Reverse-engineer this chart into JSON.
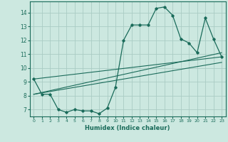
{
  "xlabel": "Humidex (Indice chaleur)",
  "bg_color": "#cce8e0",
  "grid_color": "#aaccc4",
  "line_color": "#1a6b5a",
  "xlim": [
    -0.5,
    23.5
  ],
  "ylim": [
    6.5,
    14.8
  ],
  "yticks": [
    7,
    8,
    9,
    10,
    11,
    12,
    13,
    14
  ],
  "xticks": [
    0,
    1,
    2,
    3,
    4,
    5,
    6,
    7,
    8,
    9,
    10,
    11,
    12,
    13,
    14,
    15,
    16,
    17,
    18,
    19,
    20,
    21,
    22,
    23
  ],
  "series1_x": [
    0,
    1,
    2,
    3,
    4,
    5,
    6,
    7,
    8,
    9,
    10,
    11,
    12,
    13,
    14,
    15,
    16,
    17,
    18,
    19,
    20,
    21,
    22,
    23
  ],
  "series1_y": [
    9.2,
    8.1,
    8.1,
    7.0,
    6.8,
    7.0,
    6.9,
    6.9,
    6.7,
    7.1,
    8.6,
    12.0,
    13.1,
    13.1,
    13.1,
    14.3,
    14.4,
    13.8,
    12.1,
    11.8,
    11.1,
    13.6,
    12.1,
    10.8
  ],
  "series2_x": [
    0,
    23
  ],
  "series2_y": [
    9.2,
    10.8
  ],
  "series3_x": [
    0,
    23
  ],
  "series3_y": [
    8.1,
    11.1
  ],
  "series4_x": [
    0,
    23
  ],
  "series4_y": [
    8.1,
    10.4
  ]
}
